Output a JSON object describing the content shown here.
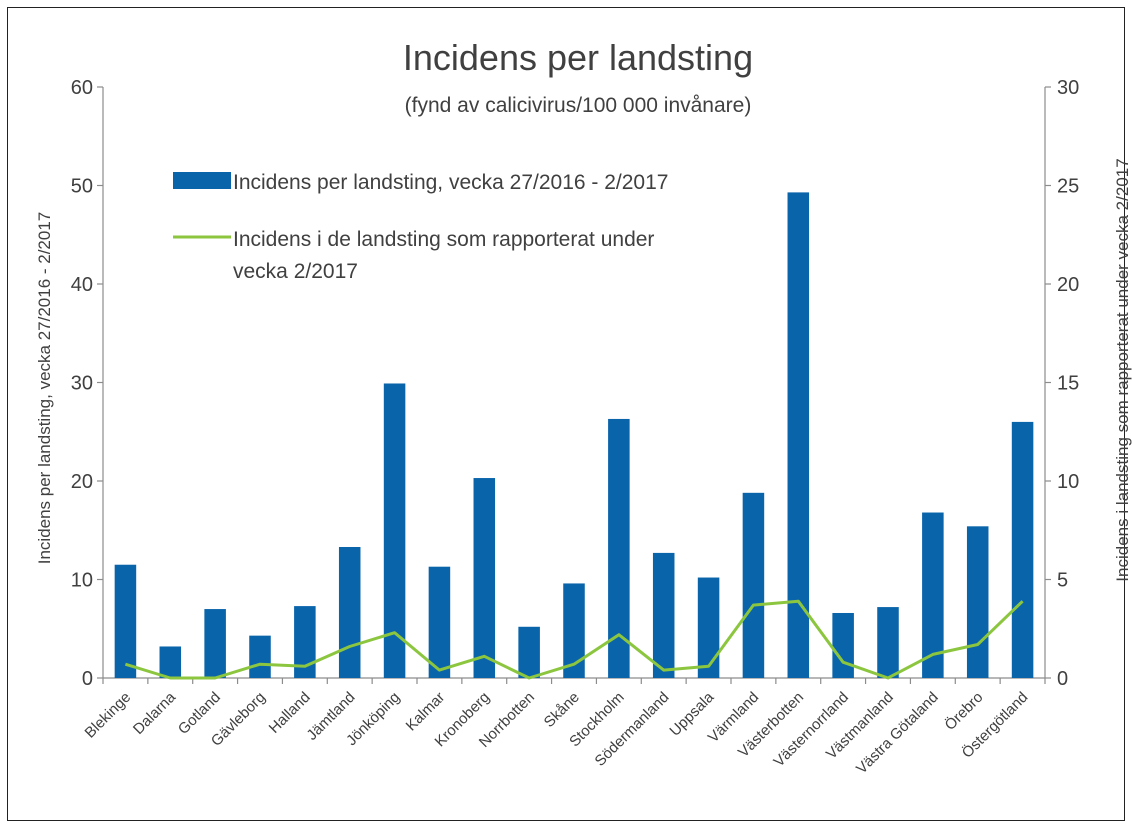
{
  "chart_data": {
    "type": "bar",
    "title": "Incidens per landsting",
    "subtitle": "(fynd av calicivirus/100 000 invånare)",
    "categories": [
      "Blekinge",
      "Dalarna",
      "Gotland",
      "Gävleborg",
      "Halland",
      "Jämtland",
      "Jönköping",
      "Kalmar",
      "Kronoberg",
      "Norrbotten",
      "Skåne",
      "Stockholm",
      "Södermanland",
      "Uppsala",
      "Värmland",
      "Västerbotten",
      "Västernorrland",
      "Västmanland",
      "Västra Götaland",
      "Örebro",
      "Östergötland"
    ],
    "series": [
      {
        "name": "Incidens per landsting, vecka 27/2016 - 2/2017",
        "type": "bar",
        "axis": "left",
        "color": "#0a64aa",
        "values": [
          11.5,
          3.2,
          7.0,
          4.3,
          7.3,
          13.3,
          29.9,
          11.3,
          20.3,
          5.2,
          9.6,
          26.3,
          12.7,
          10.2,
          18.8,
          49.3,
          6.6,
          7.2,
          16.8,
          15.4,
          26.0
        ]
      },
      {
        "name": "Incidens i de landsting som rapporterat under vecka 2/2017",
        "type": "line",
        "axis": "right",
        "color": "#8cc63f",
        "values": [
          0.7,
          0.0,
          0.0,
          0.7,
          0.6,
          1.6,
          2.3,
          0.4,
          1.1,
          0.0,
          0.7,
          2.2,
          0.4,
          0.6,
          3.7,
          3.9,
          0.8,
          0.0,
          1.2,
          1.7,
          3.9
        ]
      }
    ],
    "ylabel": "Incidens per landsting, vecka 27/2016 - 2/2017",
    "y2label": "Incidens i landsting som rapporterat under vecka 2/2017",
    "ylim": [
      0,
      60
    ],
    "y2lim": [
      0,
      30
    ],
    "yticks": [
      0,
      10,
      20,
      30,
      40,
      50,
      60
    ],
    "y2ticks": [
      0,
      5,
      10,
      15,
      20,
      25,
      30
    ],
    "legend": {
      "position": "top-left",
      "entries": [
        "Incidens per landsting, vecka 27/2016 - 2/2017",
        [
          "Incidens i de landsting som rapporterat under",
          "vecka 2/2017"
        ]
      ]
    },
    "grid": false
  }
}
